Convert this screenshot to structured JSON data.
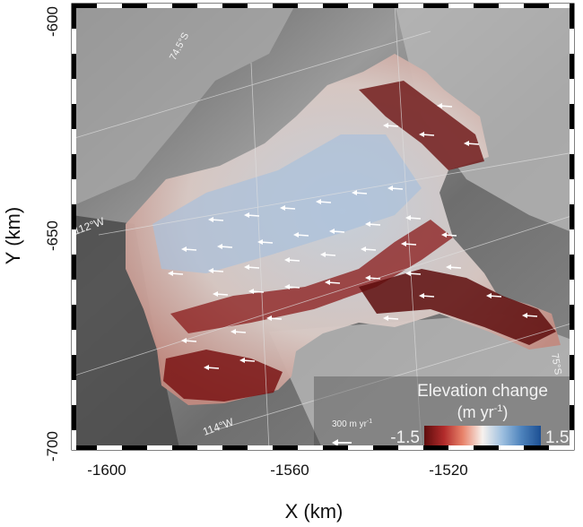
{
  "map": {
    "x_axis": {
      "label": "X (km)",
      "ticks": [
        "-1600",
        "-1560",
        "-1520"
      ]
    },
    "y_axis": {
      "label": "Y (km)",
      "ticks": [
        "-600",
        "-650",
        "-700"
      ]
    },
    "graticule_labels": {
      "lat_745": "74.5°S",
      "lat_75": "75°S",
      "lon_112": "112°W",
      "lon_114": "114°W"
    },
    "legend": {
      "title_line1": "Elevation change",
      "title_line2_pre": "(m yr",
      "title_line2_sup": "-1",
      "title_line2_post": ")",
      "min_label": "-1.5",
      "max_label": "1.5",
      "colors": [
        "#5e0d0d",
        "#b22b2b",
        "#e8836a",
        "#f7e2d8",
        "#d6e2ee",
        "#6fa1cf",
        "#1c4f93"
      ]
    },
    "velocity_scale": {
      "label_pre": "300 m yr",
      "label_sup": "-1"
    },
    "colors": {
      "background": "#7a7a7a",
      "frame": "#000000"
    }
  }
}
